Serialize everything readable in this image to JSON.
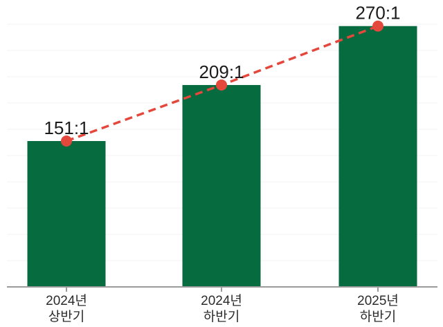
{
  "chart_data": {
    "type": "bar",
    "categories": [
      [
        "2024년",
        "상반기"
      ],
      [
        "2024년",
        "하반기"
      ],
      [
        "2025년",
        "하반기"
      ]
    ],
    "values": [
      151,
      209,
      270
    ],
    "point_labels": [
      "151:1",
      "209:1",
      "270:1"
    ],
    "series": [
      {
        "name": "competition-ratio-bars",
        "type": "bar",
        "values": [
          151,
          209,
          270
        ]
      },
      {
        "name": "competition-ratio-trend",
        "type": "line",
        "style": "dashed-with-markers",
        "values": [
          151,
          209,
          270
        ]
      }
    ],
    "title": "",
    "xlabel": "",
    "ylabel": "",
    "ylim": [
      0,
      297
    ],
    "grid": "faint-horizontal",
    "legend": "none",
    "colors": {
      "bar": "#076b40",
      "trend_line": "#e4473c",
      "marker": "#e4473c",
      "axis": "#9b9b9b",
      "value_label": "#1b1b1b",
      "tick_label": "#2b2b2b",
      "gridline": "#f3f3f3",
      "background": "#ffffff"
    }
  }
}
